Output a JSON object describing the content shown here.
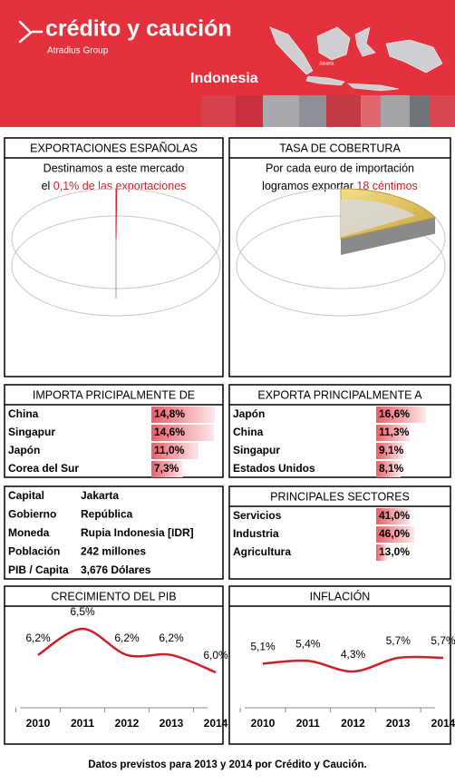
{
  "header": {
    "brand": "crédito y caución",
    "group": "Atradius Group",
    "country": "Indonesia",
    "map_label": "Jakarta"
  },
  "exports": {
    "title": "EXPORTACIONES ESPAÑOLAS",
    "text1": "Destinamos a este mercado",
    "text2": "el",
    "highlight": "0,1% de las exportaciones",
    "value": 0.1
  },
  "coverage": {
    "title": "TASA DE COBERTURA",
    "text1": "Por cada euro de importación",
    "text2": "logramos exportar",
    "highlight": "18 céntimos",
    "value": 18
  },
  "imports": {
    "title": "IMPORTA PRICIPALMENTE DE",
    "categories": [
      "China",
      "Singapur",
      "Japón",
      "Corea del Sur"
    ],
    "values": [
      14.8,
      14.6,
      11.0,
      7.3
    ],
    "value_labels": [
      "14,8%",
      "14,6%",
      "11,0%",
      "7,3%"
    ]
  },
  "exports_to": {
    "title": "EXPORTA PRINCIPALMENTE A",
    "categories": [
      "Japón",
      "China",
      "Singapur",
      "Estados Unidos"
    ],
    "values": [
      16.6,
      11.3,
      9.1,
      8.1
    ],
    "value_labels": [
      "16,6%",
      "11,3%",
      "9,1%",
      "8,1%"
    ]
  },
  "facts": {
    "rows": [
      [
        "Capital",
        "Jakarta"
      ],
      [
        "Gobierno",
        "República"
      ],
      [
        "Moneda",
        "Rupia Indonesia [IDR]"
      ],
      [
        "Población",
        "242 millones"
      ],
      [
        "PIB / Capita",
        "3,676 Dólares"
      ]
    ]
  },
  "sectors": {
    "title": "PRINCIPALES SECTORES",
    "categories": [
      "Servicios",
      "Industria",
      "Agricultura"
    ],
    "values": [
      41.0,
      46.0,
      13.0
    ],
    "value_labels": [
      "41,0%",
      "46,0%",
      "13,0%"
    ]
  },
  "chart_data": [
    {
      "type": "line",
      "title": "CRECIMIENTO DEL PIB",
      "categories": [
        "2010",
        "2011",
        "2012",
        "2013",
        "2014"
      ],
      "values": [
        6.2,
        6.5,
        6.2,
        6.2,
        6.0
      ],
      "value_labels": [
        "6,2%",
        "6,5%",
        "6,2%",
        "6,2%",
        "6,0%"
      ],
      "color": "#cc1f2a"
    },
    {
      "type": "line",
      "title": "INFLACIÓN",
      "categories": [
        "2010",
        "2011",
        "2012",
        "2013",
        "2014"
      ],
      "values": [
        5.1,
        5.4,
        4.3,
        5.7,
        5.7
      ],
      "value_labels": [
        "5,1%",
        "5,4%",
        "4,3%",
        "5,7%",
        "5,7%"
      ],
      "color": "#cc1f2a"
    }
  ],
  "footer": "Datos previstos para 2013 y 2014 por Crédito y Caución."
}
